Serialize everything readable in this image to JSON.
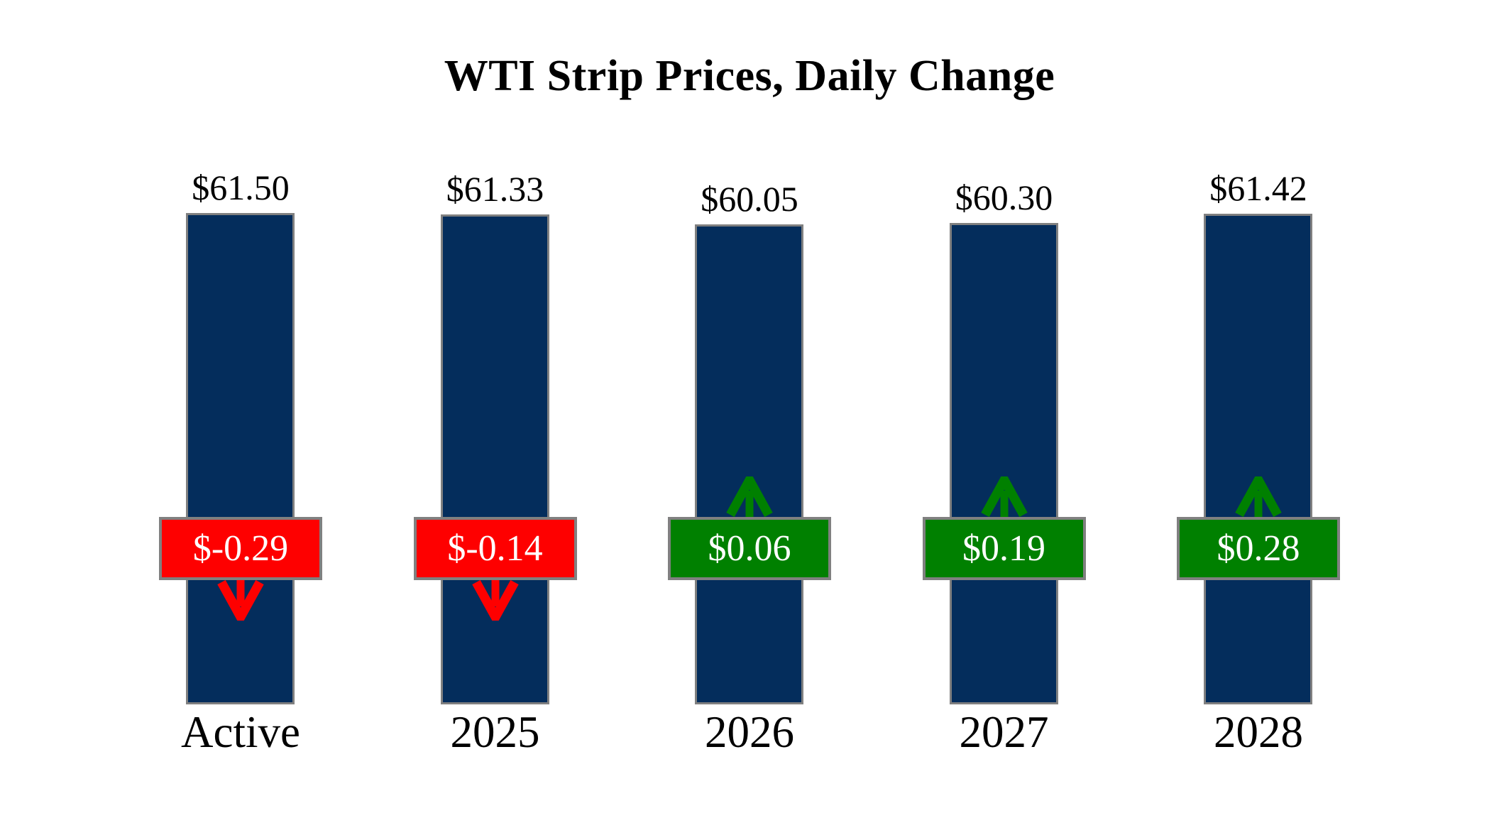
{
  "chart_data": {
    "type": "bar",
    "title": "WTI Strip Prices, Daily Change",
    "categories": [
      "Active",
      "2025",
      "2026",
      "2027",
      "2028"
    ],
    "series": [
      {
        "name": "Strip Price",
        "values": [
          61.5,
          61.33,
          60.05,
          60.3,
          61.42
        ]
      },
      {
        "name": "Daily Change",
        "values": [
          -0.29,
          -0.14,
          0.06,
          0.19,
          0.28
        ]
      }
    ],
    "price_labels": [
      "$61.50",
      "$61.33",
      "$60.05",
      "$60.30",
      "$61.42"
    ],
    "change_labels": [
      "$-0.29",
      "$-0.14",
      "$0.06",
      "$0.19",
      "$0.28"
    ],
    "change_directions": [
      "down",
      "down",
      "up",
      "up",
      "up"
    ],
    "ylim": [
      0,
      61.5
    ],
    "grid": false,
    "legend": "none",
    "colors": {
      "bar": "#042d5c",
      "negative": "#fe0000",
      "positive": "#008000",
      "border": "#808080",
      "badge_text": "#ffffff",
      "text": "#000000",
      "background": "#ffffff"
    }
  }
}
